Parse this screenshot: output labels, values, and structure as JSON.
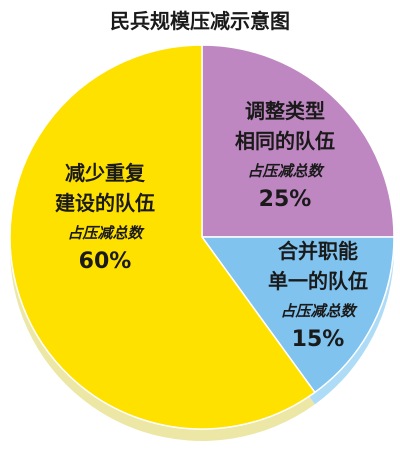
{
  "chart_data": {
    "type": "pie",
    "title": "民兵规模压减示意图",
    "slices": [
      {
        "label_lines": [
          "减少重复",
          "建设的队伍"
        ],
        "sub": "占压减总数",
        "value": 60,
        "value_text": "60%",
        "color": "#FFE100",
        "side_color": "#EDE7A6"
      },
      {
        "label_lines": [
          "调整类型",
          "相同的队伍"
        ],
        "sub": "占压减总数",
        "value": 25,
        "value_text": "25%",
        "color": "#BE87C1",
        "side_color": "#BFA4C9"
      },
      {
        "label_lines": [
          "合并职能",
          "单一的队伍"
        ],
        "sub": "占压减总数",
        "value": 15,
        "value_text": "15%",
        "color": "#7FC3EE",
        "side_color": "#AEDCF6"
      }
    ],
    "legend": "none",
    "grid": false
  }
}
